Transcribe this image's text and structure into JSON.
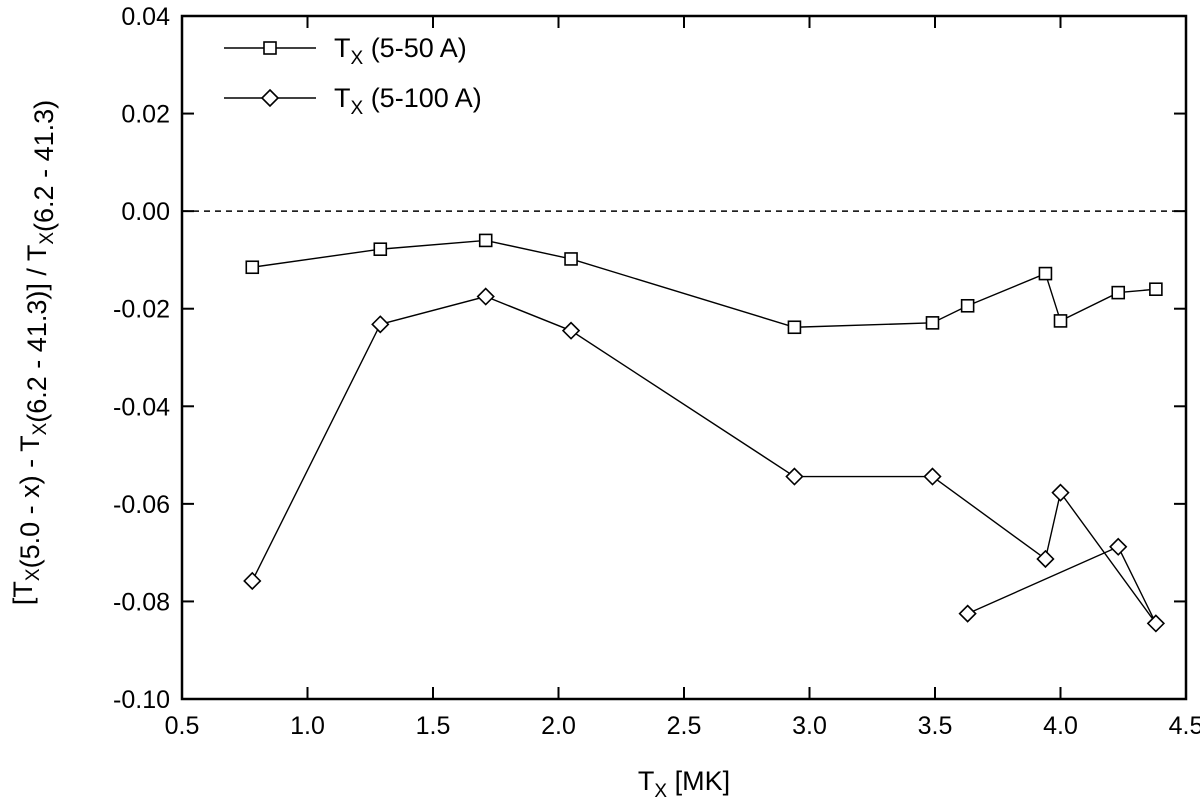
{
  "chart_data": {
    "type": "line",
    "xlabel": {
      "main": "T",
      "sub": "X",
      "rest": " [MK]"
    },
    "ylabel": [
      {
        "t": "[T"
      },
      {
        "t": "X",
        "sub": true
      },
      {
        "t": "(5.0 - x) - T"
      },
      {
        "t": "X",
        "sub": true
      },
      {
        "t": "(6.2 - 41.3)] / T"
      },
      {
        "t": "X",
        "sub": true
      },
      {
        "t": "(6.2 - 41.3)"
      }
    ],
    "xlim": [
      0.5,
      4.5
    ],
    "ylim": [
      -0.1,
      0.04
    ],
    "x_ticks": [
      "0.5",
      "1.0",
      "1.5",
      "2.0",
      "2.5",
      "3.0",
      "3.5",
      "4.0",
      "4.5"
    ],
    "y_ticks": [
      "0.04",
      "0.02",
      "0.00",
      "-0.02",
      "-0.04",
      "-0.06",
      "-0.08",
      "-0.10"
    ],
    "reference_line": {
      "y": 0.0,
      "style": "dashed"
    },
    "legend_position": "top-left",
    "grid": false,
    "series": [
      {
        "name": {
          "main": "T",
          "sub": "X",
          "rest": " (5-50 A)"
        },
        "marker": "square",
        "x": [
          0.78,
          1.29,
          1.71,
          2.05,
          2.94,
          3.49,
          3.63,
          3.94,
          4.0,
          4.23,
          4.38
        ],
        "y": [
          -0.0115,
          -0.0078,
          -0.006,
          -0.0098,
          -0.0238,
          -0.0229,
          -0.0194,
          -0.0128,
          -0.0225,
          -0.0167,
          -0.016
        ]
      },
      {
        "name": {
          "main": "T",
          "sub": "X",
          "rest": " (5-100 A)"
        },
        "marker": "diamond",
        "x": [
          0.78,
          1.29,
          1.71,
          2.05,
          2.94,
          3.49,
          3.94,
          4.0,
          4.38,
          4.23,
          3.63
        ],
        "y": [
          -0.0758,
          -0.0232,
          -0.0175,
          -0.0245,
          -0.0544,
          -0.0544,
          -0.0713,
          -0.0577,
          -0.0845,
          -0.0688,
          -0.0825
        ]
      }
    ]
  }
}
